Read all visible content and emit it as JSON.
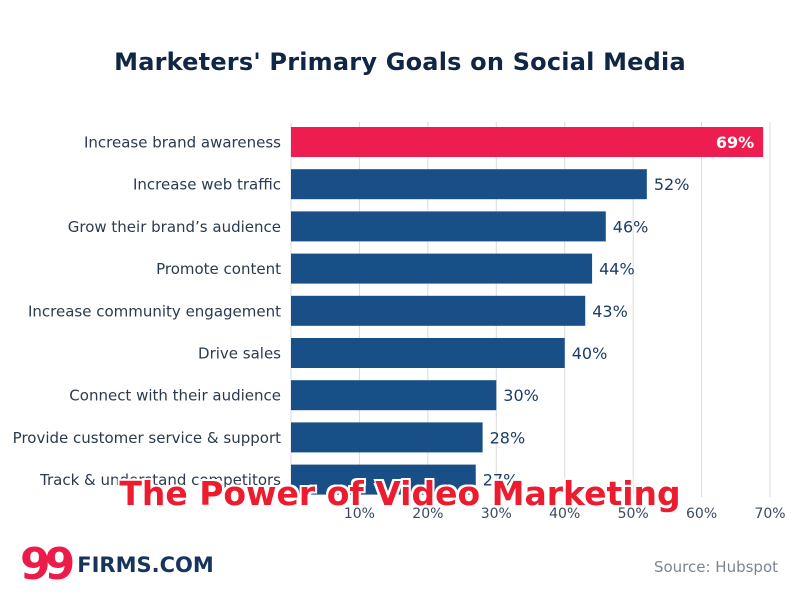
{
  "chart_data": {
    "type": "bar",
    "orientation": "horizontal",
    "title": "Marketers' Primary Goals on Social Media",
    "categories": [
      "Increase brand awareness",
      "Increase web traffic",
      "Grow their brand’s audience",
      "Promote content",
      "Increase community engagement",
      "Drive sales",
      "Connect with their audience",
      "Provide customer service & support",
      "Track & understand competitors"
    ],
    "values": [
      69,
      52,
      46,
      44,
      43,
      40,
      30,
      28,
      27
    ],
    "value_labels": [
      "69%",
      "52%",
      "46%",
      "44%",
      "43%",
      "40%",
      "30%",
      "28%",
      "27%"
    ],
    "xlim": [
      0,
      70
    ],
    "xticks": [
      10,
      20,
      30,
      40,
      50,
      60,
      70
    ],
    "xtick_labels": [
      "10%",
      "20%",
      "30%",
      "40%",
      "50%",
      "60%",
      "70%"
    ],
    "grid": true,
    "colors": {
      "highlight": "#ee1d4f",
      "bar": "#174f86"
    },
    "highlight_index": 0
  },
  "overlay_caption": "The Power of Video Marketing",
  "logo": {
    "mark": "99",
    "text": "FIRMS.COM",
    "color": "#ec1c4a",
    "text_color": "#17355c"
  },
  "source": "Source: Hubspot"
}
